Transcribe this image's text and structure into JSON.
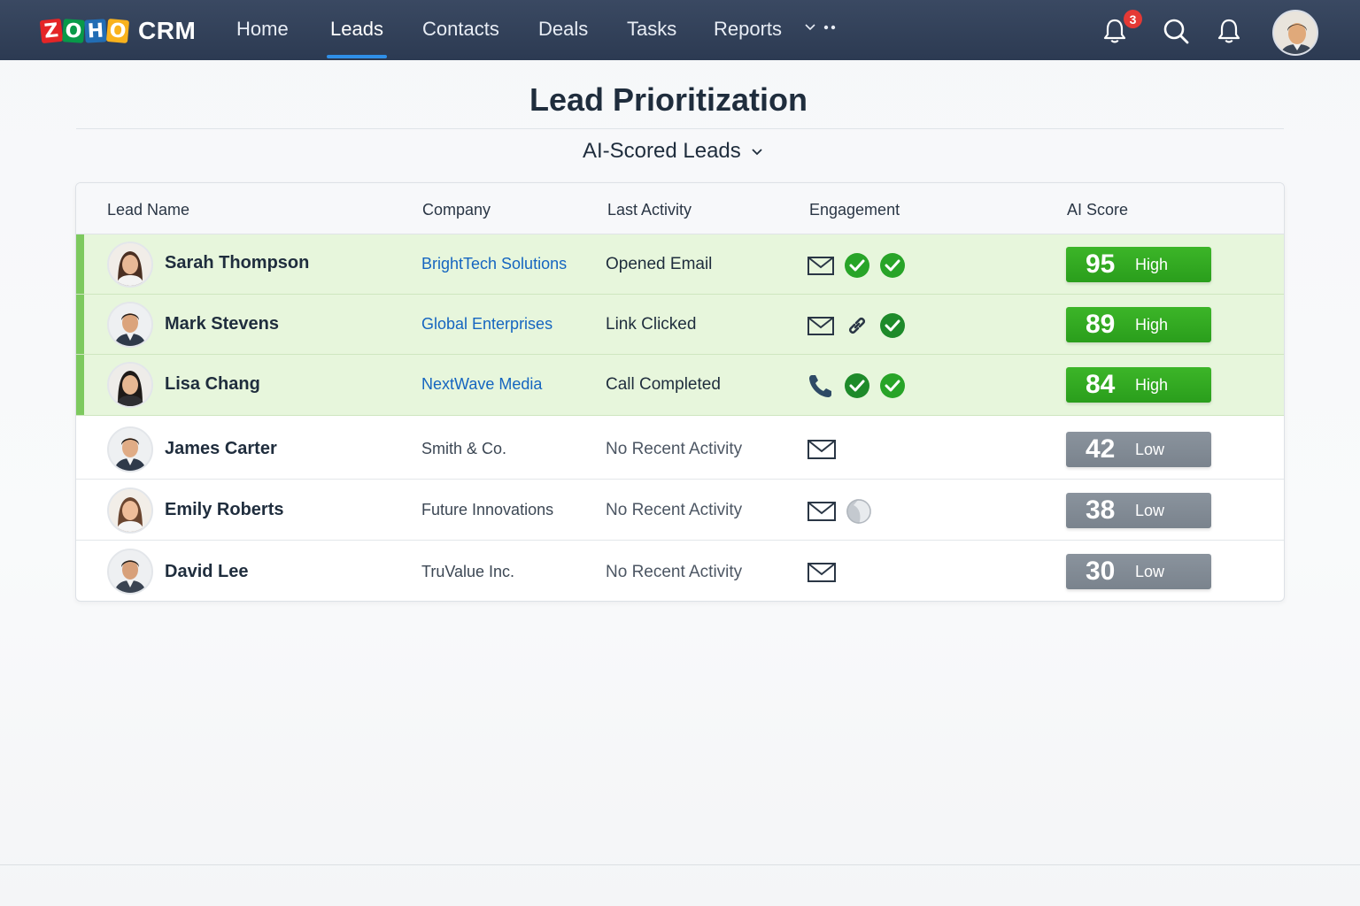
{
  "app": {
    "logo_letters": [
      "Z",
      "O",
      "H",
      "O"
    ],
    "logo_product": "CRM"
  },
  "nav": {
    "items": [
      "Home",
      "Leads",
      "Contacts",
      "Deals",
      "Tasks",
      "Reports"
    ],
    "active": "Leads",
    "notification_count": "3"
  },
  "page": {
    "title": "Lead Prioritization",
    "view": "AI-Scored Leads"
  },
  "table": {
    "headers": [
      "Lead Name",
      "Company",
      "Last Activity",
      "Engagement",
      "AI Score"
    ],
    "rows": [
      {
        "name": "Sarah Thompson",
        "company": "BrightTech Solutions",
        "activity": "Opened Email",
        "engagement": [
          "mail-icon",
          "check-icon",
          "check-icon"
        ],
        "score": "95",
        "level": "High"
      },
      {
        "name": "Mark Stevens",
        "company": "Global Enterprises",
        "activity": "Link Clicked",
        "engagement": [
          "mail-icon",
          "link-icon",
          "check-icon"
        ],
        "score": "89",
        "level": "High"
      },
      {
        "name": "Lisa Chang",
        "company": "NextWave Media",
        "activity": "Call Completed",
        "engagement": [
          "phone-icon",
          "check-icon",
          "check-icon"
        ],
        "score": "84",
        "level": "High"
      },
      {
        "name": "James Carter",
        "company": "Smith & Co.",
        "activity": "No Recent Activity",
        "engagement": [
          "mail-icon"
        ],
        "score": "42",
        "level": "Low"
      },
      {
        "name": "Emily Roberts",
        "company": "Future Innovations",
        "activity": "No Recent Activity",
        "engagement": [
          "mail-icon",
          "partial-icon"
        ],
        "score": "38",
        "level": "Low"
      },
      {
        "name": "David Lee",
        "company": "TruValue Inc.",
        "activity": "No Recent Activity",
        "engagement": [
          "mail-icon"
        ],
        "score": "30",
        "level": "Low"
      }
    ]
  },
  "colors": {
    "nav_bg": "#334158",
    "accent_blue": "#2f8fe8",
    "high_green": "#2fa820",
    "low_gray": "#828b95",
    "row_highlight": "#e7f6dc",
    "company_link": "#1565c0"
  }
}
